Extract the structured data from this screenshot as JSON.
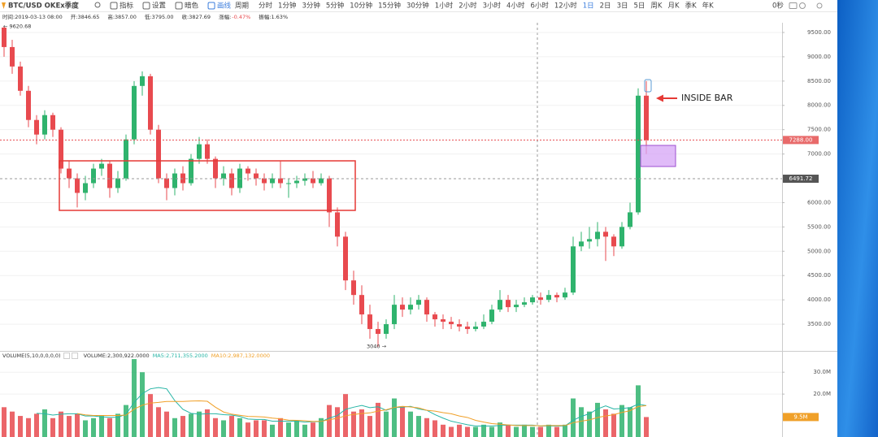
{
  "toolbar": {
    "symbol": "BTC/USD OKEx季度",
    "buttons": [
      "指标",
      "设置",
      "暗色",
      "画线"
    ],
    "periods": [
      "周期",
      "分时",
      "1分钟",
      "3分钟",
      "5分钟",
      "10分钟",
      "15分钟",
      "30分钟",
      "1小时",
      "2小时",
      "3小时",
      "4小时",
      "6小时",
      "12小时",
      "1日",
      "2日",
      "3日",
      "5日",
      "周K",
      "月K",
      "季K",
      "年K"
    ],
    "active_period": "1日",
    "right": "0秒"
  },
  "info": [
    "时间:2019-03-13 08:00",
    "开:3846.65",
    "高:3857.00",
    "低:3795.00",
    "收:3827.69",
    "涨幅:",
    "-0.47%",
    "振幅:1.63%"
  ],
  "chart_data": [
    {
      "type": "candlestick",
      "open": [
        9600,
        9200,
        8800,
        8300,
        7700,
        7400,
        7800,
        7500,
        6700,
        6500,
        6200,
        6400,
        6700,
        6800,
        6300,
        6500,
        7300,
        8400,
        8600,
        7500,
        6500,
        6300,
        6600,
        6400,
        6900,
        7200,
        6900,
        6500,
        6600,
        6300,
        6700,
        6600,
        6500,
        6400,
        6500,
        6400,
        6400,
        6450,
        6500,
        6400,
        6500,
        5800,
        5300,
        4400,
        4100,
        3700,
        3400,
        3300,
        3500,
        3900,
        3800,
        3900,
        4000,
        3700,
        3600,
        3550,
        3500,
        3450,
        3400,
        3450,
        3550,
        3800,
        4000,
        3850,
        3900,
        3950,
        4050,
        4000,
        4100,
        4050,
        4150,
        5100,
        5200,
        5250,
        5400,
        5300,
        5100,
        5500,
        5800,
        8200
      ],
      "high": [
        9620.68,
        9350,
        8900,
        8400,
        7800,
        7900,
        7850,
        7550,
        6850,
        6600,
        6550,
        6800,
        6900,
        6850,
        6650,
        7400,
        8500,
        8700,
        8650,
        7600,
        6600,
        6700,
        6750,
        7000,
        7350,
        7300,
        6950,
        6750,
        6700,
        6800,
        6750,
        6700,
        6600,
        6600,
        6850,
        6500,
        6550,
        6600,
        6650,
        6600,
        6550,
        5900,
        5400,
        4600,
        4300,
        3900,
        3550,
        3600,
        4100,
        4050,
        4050,
        4100,
        4050,
        3750,
        3700,
        3650,
        3600,
        3550,
        3550,
        3700,
        3900,
        4200,
        4100,
        4000,
        4050,
        4100,
        4150,
        4200,
        4150,
        4250,
        5300,
        5400,
        5500,
        5600,
        5500,
        5350,
        5600,
        6000,
        8350,
        8500
      ],
      "low": [
        9000,
        8650,
        8200,
        7550,
        7200,
        7300,
        7350,
        6600,
        6300,
        5900,
        6050,
        6300,
        6550,
        6100,
        6200,
        6450,
        7200,
        8200,
        7400,
        6400,
        6050,
        6150,
        6250,
        6350,
        6800,
        6800,
        6300,
        6350,
        6150,
        6200,
        6450,
        6350,
        6250,
        6300,
        6300,
        6100,
        6300,
        6350,
        6300,
        6350,
        5500,
        5100,
        4200,
        3900,
        3500,
        3200,
        3040,
        3200,
        3400,
        3650,
        3700,
        3800,
        3550,
        3450,
        3400,
        3400,
        3350,
        3300,
        3350,
        3400,
        3500,
        3750,
        3750,
        3750,
        3850,
        3900,
        3900,
        3950,
        3950,
        4000,
        4100,
        5000,
        5050,
        5100,
        4800,
        4900,
        5050,
        5450,
        5750,
        7000
      ],
      "close": [
        9200,
        8800,
        8300,
        7700,
        7400,
        7800,
        7500,
        6700,
        6500,
        6200,
        6400,
        6700,
        6800,
        6300,
        6500,
        7300,
        8400,
        8600,
        7500,
        6500,
        6300,
        6600,
        6400,
        6900,
        7200,
        6900,
        6500,
        6600,
        6300,
        6700,
        6600,
        6500,
        6400,
        6500,
        6400,
        6400,
        6450,
        6500,
        6400,
        6500,
        5800,
        5300,
        4400,
        4100,
        3700,
        3400,
        3300,
        3500,
        3900,
        3800,
        3900,
        4000,
        3700,
        3600,
        3550,
        3500,
        3450,
        3400,
        3450,
        3550,
        3800,
        4000,
        3850,
        3900,
        3950,
        4050,
        4000,
        4100,
        4050,
        4150,
        5100,
        5200,
        5250,
        5400,
        5300,
        5100,
        5500,
        5800,
        8200,
        7288
      ],
      "up_color": "#2fb36d",
      "down_color": "#e84a4f",
      "ylim": [
        2950,
        9700
      ],
      "yticks": [
        {
          "value": 3500,
          "label": "3500.00"
        },
        {
          "value": 4000,
          "label": "4000.00"
        },
        {
          "value": 4500,
          "label": "4500.00"
        },
        {
          "value": 5000,
          "label": "5000.00"
        },
        {
          "value": 5500,
          "label": "5500.00"
        },
        {
          "value": 6000,
          "label": "6000.00"
        },
        {
          "value": 7000,
          "label": "7000.00"
        },
        {
          "value": 7500,
          "label": "7500.00"
        },
        {
          "value": 8000,
          "label": "8000.00"
        },
        {
          "value": 8500,
          "label": "8500.00"
        },
        {
          "value": 9000,
          "label": "9000.00"
        },
        {
          "value": 9500,
          "label": "9500.00"
        }
      ],
      "grid": true,
      "last_price": {
        "value": 7288,
        "label": "7288.00"
      },
      "crosshair_price": {
        "value": 6491.72,
        "label": "6491.72"
      },
      "high_marker": {
        "value": 9620.68,
        "label": "← 9620.68"
      },
      "low_marker": {
        "value": 3040,
        "label": "3040 →"
      },
      "annotation": "INSIDE BAR"
    },
    {
      "type": "bar",
      "title": "VOLUME(5,10,0,0,0,0)",
      "readout": "VOLUME:2,300,922.0000",
      "values": [
        14,
        12,
        10,
        9,
        11,
        13,
        9,
        12,
        10,
        11,
        8,
        9,
        10,
        9,
        11,
        15,
        36,
        30,
        20,
        14,
        12,
        9,
        10,
        11,
        12,
        13,
        9,
        8,
        10,
        9,
        7,
        8,
        8,
        6,
        9,
        7,
        8,
        6,
        7,
        9,
        15,
        14,
        20,
        12,
        13,
        10,
        16,
        12,
        18,
        14,
        12,
        10,
        9,
        8,
        6,
        5,
        6,
        5,
        5,
        6,
        5,
        7,
        6,
        5,
        6,
        5,
        5,
        6,
        5,
        6,
        18,
        14,
        12,
        16,
        13,
        11,
        15,
        14,
        24,
        9.5
      ],
      "series": [
        {
          "label": "MA5:2,711,355.2000",
          "color": "#26b5a5",
          "values": [
            null,
            null,
            null,
            null,
            11.2,
            11,
            10.4,
            10.8,
            11,
            11,
            10,
            10,
            9.6,
            9.4,
            9.4,
            10.8,
            16.2,
            20.2,
            22.4,
            23,
            22.4,
            17,
            13,
            11.2,
            10.8,
            11,
            11,
            10.6,
            10.4,
            9.8,
            8.6,
            8.4,
            8.4,
            7.6,
            7.6,
            7.6,
            7.6,
            7.2,
            7.4,
            7.4,
            9,
            10.2,
            13,
            14,
            14.8,
            13.8,
            14.2,
            12.6,
            13.8,
            14,
            14.4,
            13.2,
            12.6,
            10.6,
            9,
            7.6,
            6.8,
            6,
            5.4,
            5.4,
            5.4,
            5.6,
            5.8,
            5.8,
            5.8,
            5.8,
            5.4,
            5.4,
            5.4,
            5.4,
            8,
            9.8,
            11,
            13.2,
            14.6,
            13.2,
            13.4,
            13.8,
            15.4,
            14.7
          ]
        },
        {
          "label": "MA10:2,987,132.0000",
          "color": "#f0a028",
          "values": [
            null,
            null,
            null,
            null,
            null,
            null,
            null,
            null,
            null,
            11.1,
            10.5,
            10.2,
            10.2,
            10.2,
            10.2,
            10.4,
            13.1,
            14.9,
            15.9,
            16.2,
            16.6,
            16.6,
            16.6,
            16.8,
            16.9,
            16.7,
            14,
            11.8,
            10.8,
            10.3,
            9.8,
            9.7,
            9.5,
            9,
            8.7,
            8.1,
            8,
            7.8,
            7.5,
            7.5,
            8.3,
            8.9,
            10.1,
            10.7,
            11.1,
            11.4,
            12.2,
            12.8,
            13.9,
            14.4,
            14.1,
            13.7,
            12.6,
            12.2,
            11.5,
            11,
            10,
            9.3,
            8,
            7.2,
            6.5,
            6.2,
            5.9,
            5.6,
            5.6,
            5.6,
            5.5,
            5.6,
            5.6,
            5.6,
            6.9,
            7.6,
            8.2,
            9.3,
            10,
            10.6,
            11.6,
            12.4,
            14.3,
            14.7
          ]
        }
      ],
      "ylim": [
        0,
        39
      ],
      "yticks": [
        {
          "value": 20,
          "label": "20.0M"
        },
        {
          "value": 30,
          "label": "30.0M"
        }
      ],
      "current_volume": {
        "value": 9.5,
        "label": "9.5M"
      }
    }
  ]
}
